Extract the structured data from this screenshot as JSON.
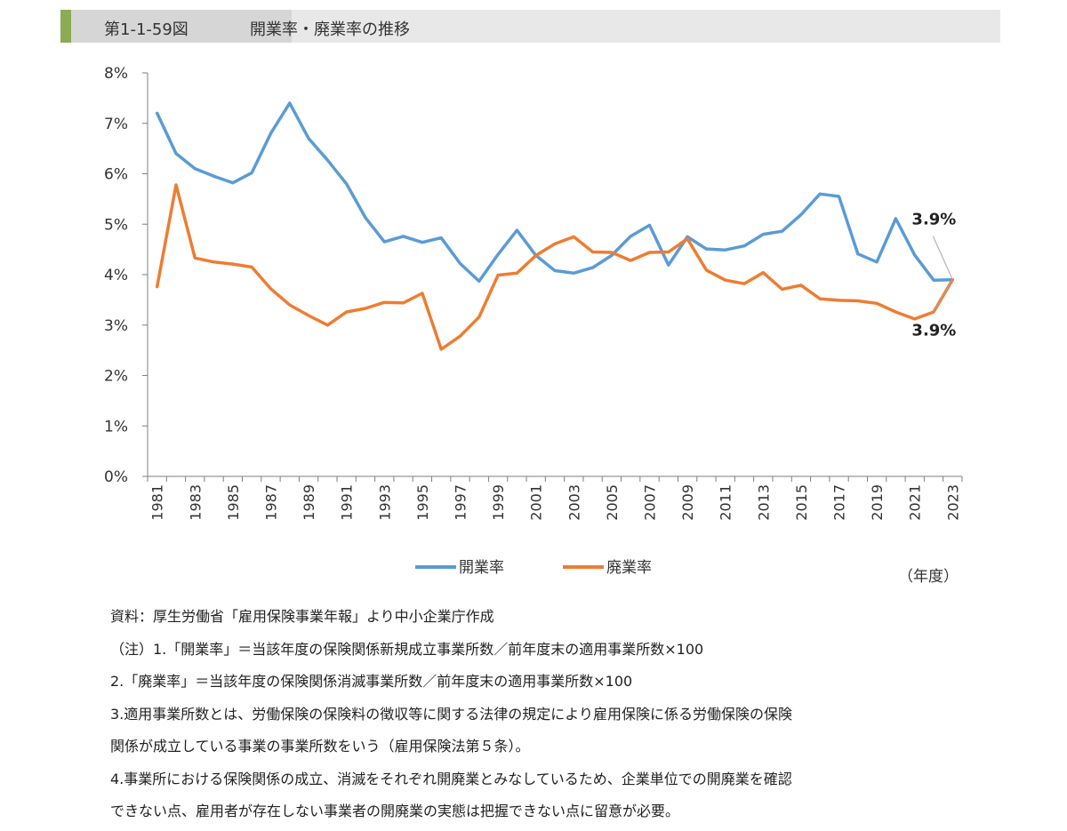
{
  "header": {
    "figure_number": "第1-1-59図",
    "title": "開業率・廃業率の推移"
  },
  "chart_data": {
    "type": "line",
    "x": [
      1981,
      1982,
      1983,
      1984,
      1985,
      1986,
      1987,
      1988,
      1989,
      1990,
      1991,
      1992,
      1993,
      1994,
      1995,
      1996,
      1997,
      1998,
      1999,
      2000,
      2001,
      2002,
      2003,
      2004,
      2005,
      2006,
      2007,
      2008,
      2009,
      2010,
      2011,
      2012,
      2013,
      2014,
      2015,
      2016,
      2017,
      2018,
      2019,
      2020,
      2021,
      2022,
      2023
    ],
    "x_tick_labels": [
      "1981",
      "1983",
      "1985",
      "1987",
      "1989",
      "1991",
      "1993",
      "1995",
      "1997",
      "1999",
      "2001",
      "2003",
      "2005",
      "2007",
      "2009",
      "2011",
      "2013",
      "2015",
      "2017",
      "2019",
      "2021",
      "2023"
    ],
    "y_tick_labels": [
      "0%",
      "1%",
      "2%",
      "3%",
      "4%",
      "5%",
      "6%",
      "7%",
      "8%"
    ],
    "ylim": [
      0,
      8
    ],
    "xlabel": "（年度）",
    "series": [
      {
        "name": "開業率",
        "color": "#5b9bd5",
        "values": [
          7.2,
          6.4,
          6.1,
          5.95,
          5.82,
          6.02,
          6.8,
          7.4,
          6.7,
          6.27,
          5.8,
          5.13,
          4.65,
          4.76,
          4.64,
          4.73,
          4.22,
          3.87,
          4.4,
          4.88,
          4.38,
          4.08,
          4.03,
          4.14,
          4.38,
          4.76,
          4.98,
          4.19,
          4.75,
          4.51,
          4.49,
          4.57,
          4.8,
          4.86,
          5.19,
          5.6,
          5.55,
          4.41,
          4.25,
          5.11,
          4.39,
          3.89,
          3.9
        ]
      },
      {
        "name": "廃業率",
        "color": "#ed7d31",
        "values": [
          3.76,
          5.78,
          4.33,
          4.25,
          4.21,
          4.15,
          3.72,
          3.4,
          3.19,
          3.0,
          3.26,
          3.33,
          3.45,
          3.44,
          3.63,
          2.52,
          2.78,
          3.16,
          3.99,
          4.03,
          4.38,
          4.61,
          4.75,
          4.45,
          4.44,
          4.28,
          4.44,
          4.45,
          4.71,
          4.09,
          3.89,
          3.82,
          4.04,
          3.71,
          3.79,
          3.52,
          3.49,
          3.48,
          3.43,
          3.26,
          3.12,
          3.26,
          3.9
        ]
      }
    ],
    "annotations": [
      {
        "text": "3.9%",
        "series": "開業率",
        "position": "above"
      },
      {
        "text": "3.9%",
        "series": "廃業率",
        "position": "below"
      }
    ],
    "legend_position": "bottom",
    "grid": false
  },
  "notes": [
    "資料：厚生労働省「雇用保険事業年報」より中小企業庁作成",
    "（注）1.「開業率」＝当該年度の保険関係新規成立事業所数／前年度末の適用事業所数×100",
    "2.「廃業率」＝当該年度の保険関係消滅事業所数／前年度末の適用事業所数×100",
    "3.適用事業所数とは、労働保険の保険料の徴収等に関する法律の規定により雇用保険に係る労働保険の保険",
    "関係が成立している事業の事業所数をいう（雇用保険法第５条）。",
    "4.事業所における保険関係の成立、消滅をそれぞれ開廃業とみなしているため、企業単位での開廃業を確認",
    "できない点、雇用者が存在しない事業者の開廃業の実態は把握できない点に留意が必要。"
  ]
}
